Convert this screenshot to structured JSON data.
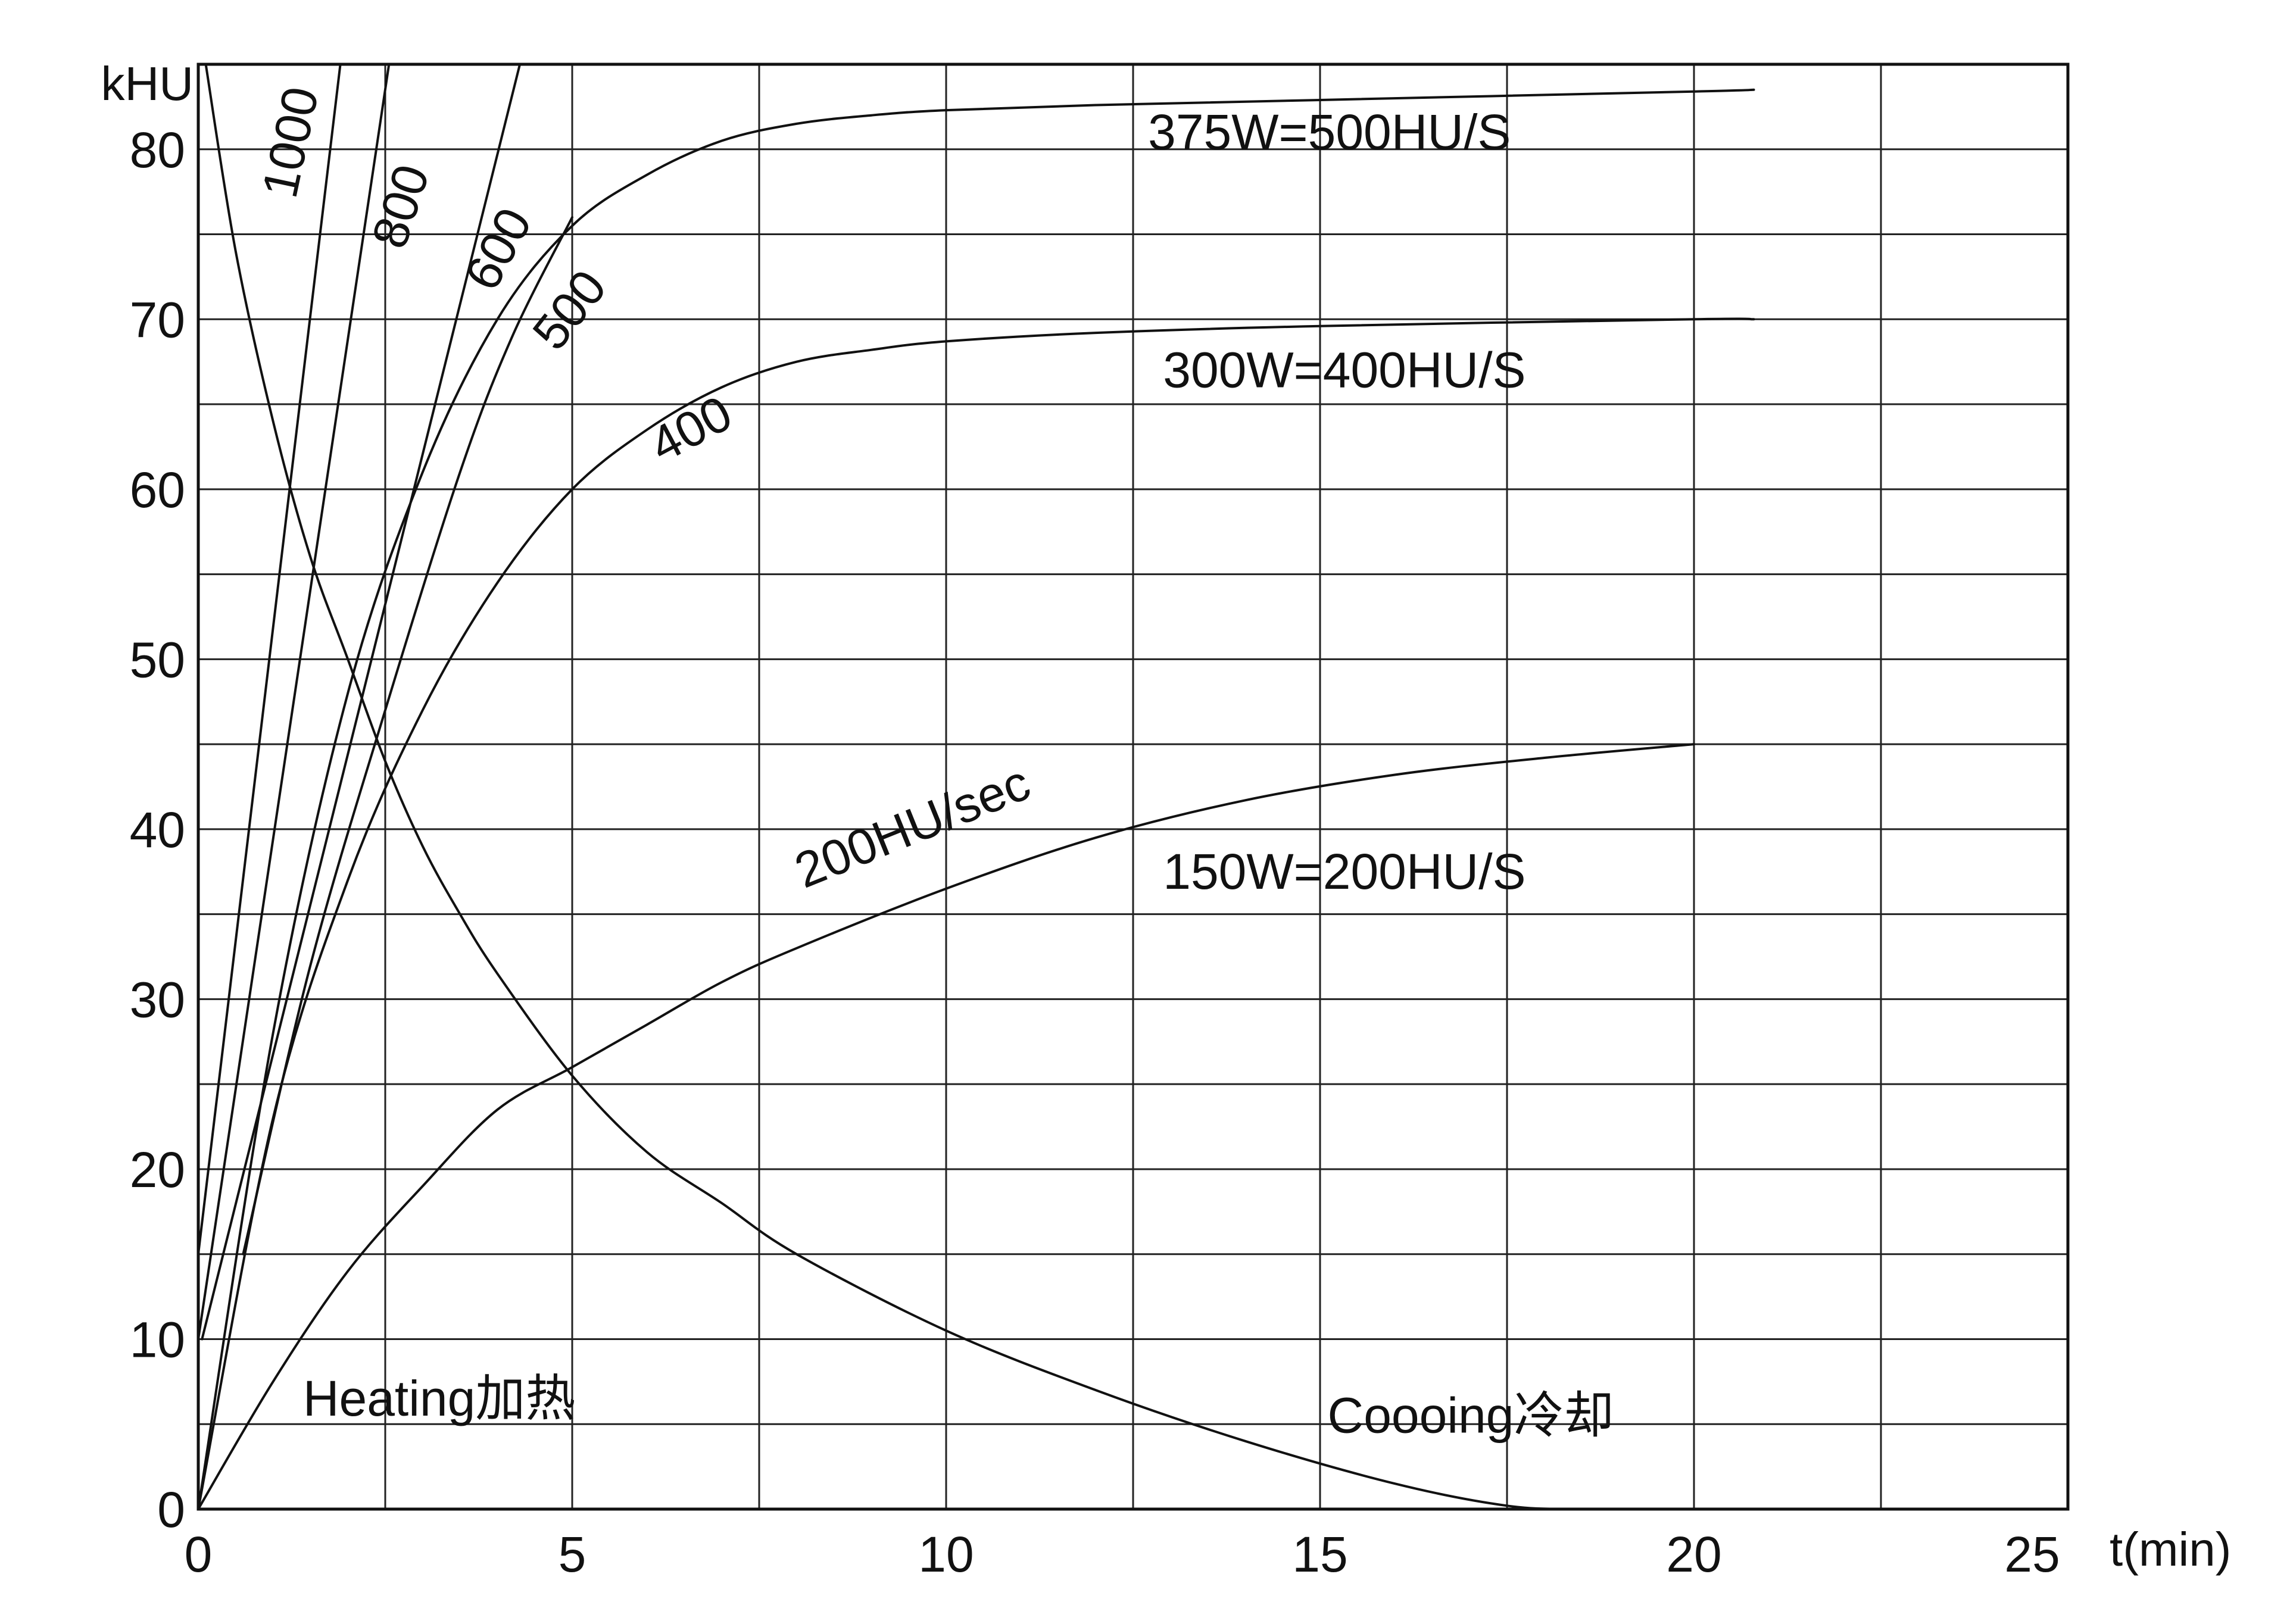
{
  "chart_data": {
    "type": "line",
    "title": "",
    "xlabel": "t(min)",
    "ylabel": "kHU",
    "xlim": [
      0,
      25
    ],
    "ylim": [
      0,
      85
    ],
    "grid": true,
    "x_ticks": [
      {
        "value": 0,
        "label": "0"
      },
      {
        "value": 5,
        "label": "5"
      },
      {
        "value": 10,
        "label": "10"
      },
      {
        "value": 15,
        "label": "15"
      },
      {
        "value": 20,
        "label": "20"
      },
      {
        "value": 25,
        "label": "25"
      }
    ],
    "y_ticks": [
      {
        "value": 0,
        "label": "0"
      },
      {
        "value": 10,
        "label": "10"
      },
      {
        "value": 20,
        "label": "20"
      },
      {
        "value": 30,
        "label": "30"
      },
      {
        "value": 40,
        "label": "40"
      },
      {
        "value": 50,
        "label": "50"
      },
      {
        "value": 60,
        "label": "60"
      },
      {
        "value": 70,
        "label": "70"
      },
      {
        "value": 80,
        "label": "80"
      }
    ],
    "x_grid": [
      2.5,
      5,
      7.5,
      10,
      12.5,
      15,
      17.5,
      20,
      22.5
    ],
    "y_grid": [
      5,
      10,
      15,
      20,
      25,
      30,
      35,
      40,
      45,
      50,
      55,
      60,
      65,
      70,
      75,
      80
    ],
    "series": [
      {
        "name": "1000",
        "x": [
          0,
          1.9
        ],
        "y": [
          15,
          85
        ]
      },
      {
        "name": "800",
        "x": [
          0,
          2.55
        ],
        "y": [
          10,
          85
        ]
      },
      {
        "name": "600",
        "x": [
          0.05,
          4.3
        ],
        "y": [
          10,
          85
        ]
      },
      {
        "name": "500",
        "x": [
          0.6,
          1.5,
          2.5,
          3.5,
          4.2,
          5.0
        ],
        "y": [
          15,
          32,
          47,
          61,
          69,
          76
        ]
      },
      {
        "name": "400",
        "x": [
          0,
          1,
          2,
          3,
          4,
          5,
          6,
          7,
          8,
          9,
          10,
          12,
          15,
          20,
          20.8
        ],
        "y": [
          0,
          23,
          37,
          47,
          54.5,
          60,
          63.5,
          66,
          67.5,
          68.2,
          68.7,
          69.2,
          69.6,
          70,
          70
        ]
      },
      {
        "name": "375W=500HU/S",
        "x": [
          0,
          1,
          2,
          3,
          4,
          5,
          6,
          7,
          8,
          9,
          10,
          12,
          15,
          20,
          20.8
        ],
        "y": [
          0,
          28,
          48,
          61,
          70,
          75.5,
          78.5,
          80.5,
          81.5,
          82,
          82.3,
          82.6,
          82.9,
          83.4,
          83.5
        ]
      },
      {
        "name": "150W=200HU/S",
        "x": [
          0,
          1,
          2,
          3,
          4,
          5,
          6,
          7,
          8,
          10,
          12,
          14,
          16,
          18,
          20
        ],
        "y": [
          0,
          7.5,
          14,
          19,
          23.5,
          26,
          28.5,
          31,
          33,
          36.5,
          39.5,
          41.7,
          43.2,
          44.2,
          45
        ]
      },
      {
        "name": "Cooling",
        "x": [
          0.1,
          0.5,
          1,
          1.5,
          2,
          2.5,
          3,
          3.5,
          4,
          5,
          6,
          7,
          8,
          10,
          12,
          14,
          16,
          17.5,
          18.5,
          20
        ],
        "y": [
          85,
          74,
          64,
          56,
          50,
          44,
          39,
          35,
          31.5,
          25.5,
          21,
          18,
          15,
          10.5,
          7,
          4,
          1.5,
          0.2,
          0,
          0
        ]
      }
    ],
    "annotations": [
      {
        "text": "1000",
        "x": 1.3,
        "y": 77,
        "angle": -78
      },
      {
        "text": "800",
        "x": 2.75,
        "y": 74,
        "angle": -72
      },
      {
        "text": "600",
        "x": 3.95,
        "y": 71.5,
        "angle": -62
      },
      {
        "text": "500",
        "x": 4.8,
        "y": 68,
        "angle": -52
      },
      {
        "text": "400",
        "x": 6.2,
        "y": 61.5,
        "angle": -28
      },
      {
        "text": "375W=500HU/S",
        "x": 12.7,
        "y": 80,
        "angle": 0
      },
      {
        "text": "300W=400HU/S",
        "x": 12.9,
        "y": 66,
        "angle": 0
      },
      {
        "text": "200HU/sec",
        "x": 8.1,
        "y": 36.5,
        "angle": -22
      },
      {
        "text": "150W=200HU/S",
        "x": 12.9,
        "y": 36.5,
        "angle": 0
      },
      {
        "text": "Heating加热",
        "x": 1.4,
        "y": 5.5,
        "angle": 0
      },
      {
        "text": "Coooing冷却",
        "x": 15.1,
        "y": 4.5,
        "angle": 0
      }
    ]
  }
}
